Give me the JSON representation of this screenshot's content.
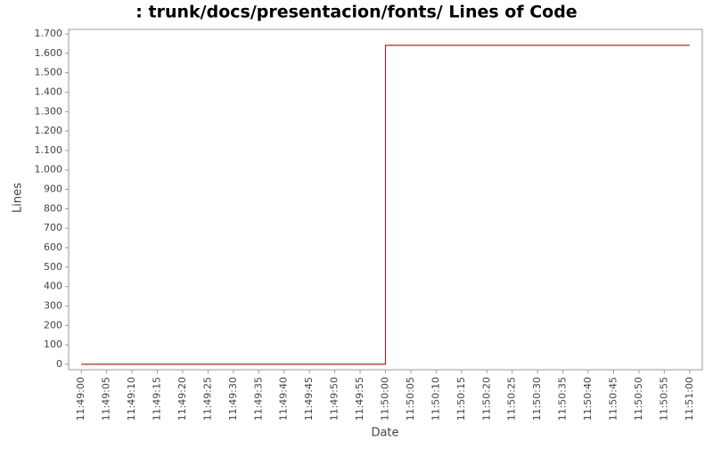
{
  "chart_data": {
    "type": "line",
    "step": true,
    "title": ": trunk/docs/presentacion/fonts/ Lines of Code",
    "x_label": "Date",
    "y_label": "Lines",
    "x": [
      "11:49:00",
      "11:50:00",
      "11:51:00"
    ],
    "series": [
      {
        "color": "#a52a2a",
        "values": [
          0,
          1641,
          1641
        ]
      }
    ],
    "xlim": [
      "11:48:57.5",
      "11:51:02.5"
    ],
    "xticks": [
      "11:49:00",
      "11:49:05",
      "11:49:10",
      "11:49:15",
      "11:49:20",
      "11:49:25",
      "11:49:30",
      "11:49:35",
      "11:49:40",
      "11:49:45",
      "11:49:50",
      "11:49:55",
      "11:50:00",
      "11:50:05",
      "11:50:10",
      "11:50:15",
      "11:50:20",
      "11:50:25",
      "11:50:30",
      "11:50:35",
      "11:50:40",
      "11:50:45",
      "11:50:50",
      "11:50:55",
      "11:51:00"
    ],
    "ylim": [
      -28,
      1723
    ],
    "yticks": [
      0,
      100,
      200,
      300,
      400,
      500,
      600,
      700,
      800,
      900,
      {
        "value": 1000,
        "label": "1.000"
      },
      {
        "value": 1100,
        "label": "1.100"
      },
      {
        "value": 1200,
        "label": "1.200"
      },
      {
        "value": 1300,
        "label": "1.300"
      },
      {
        "value": 1400,
        "label": "1.400"
      },
      {
        "value": 1500,
        "label": "1.500"
      },
      {
        "value": 1600,
        "label": "1.600"
      },
      {
        "value": 1700,
        "label": "1.700"
      }
    ],
    "grid": false
  }
}
